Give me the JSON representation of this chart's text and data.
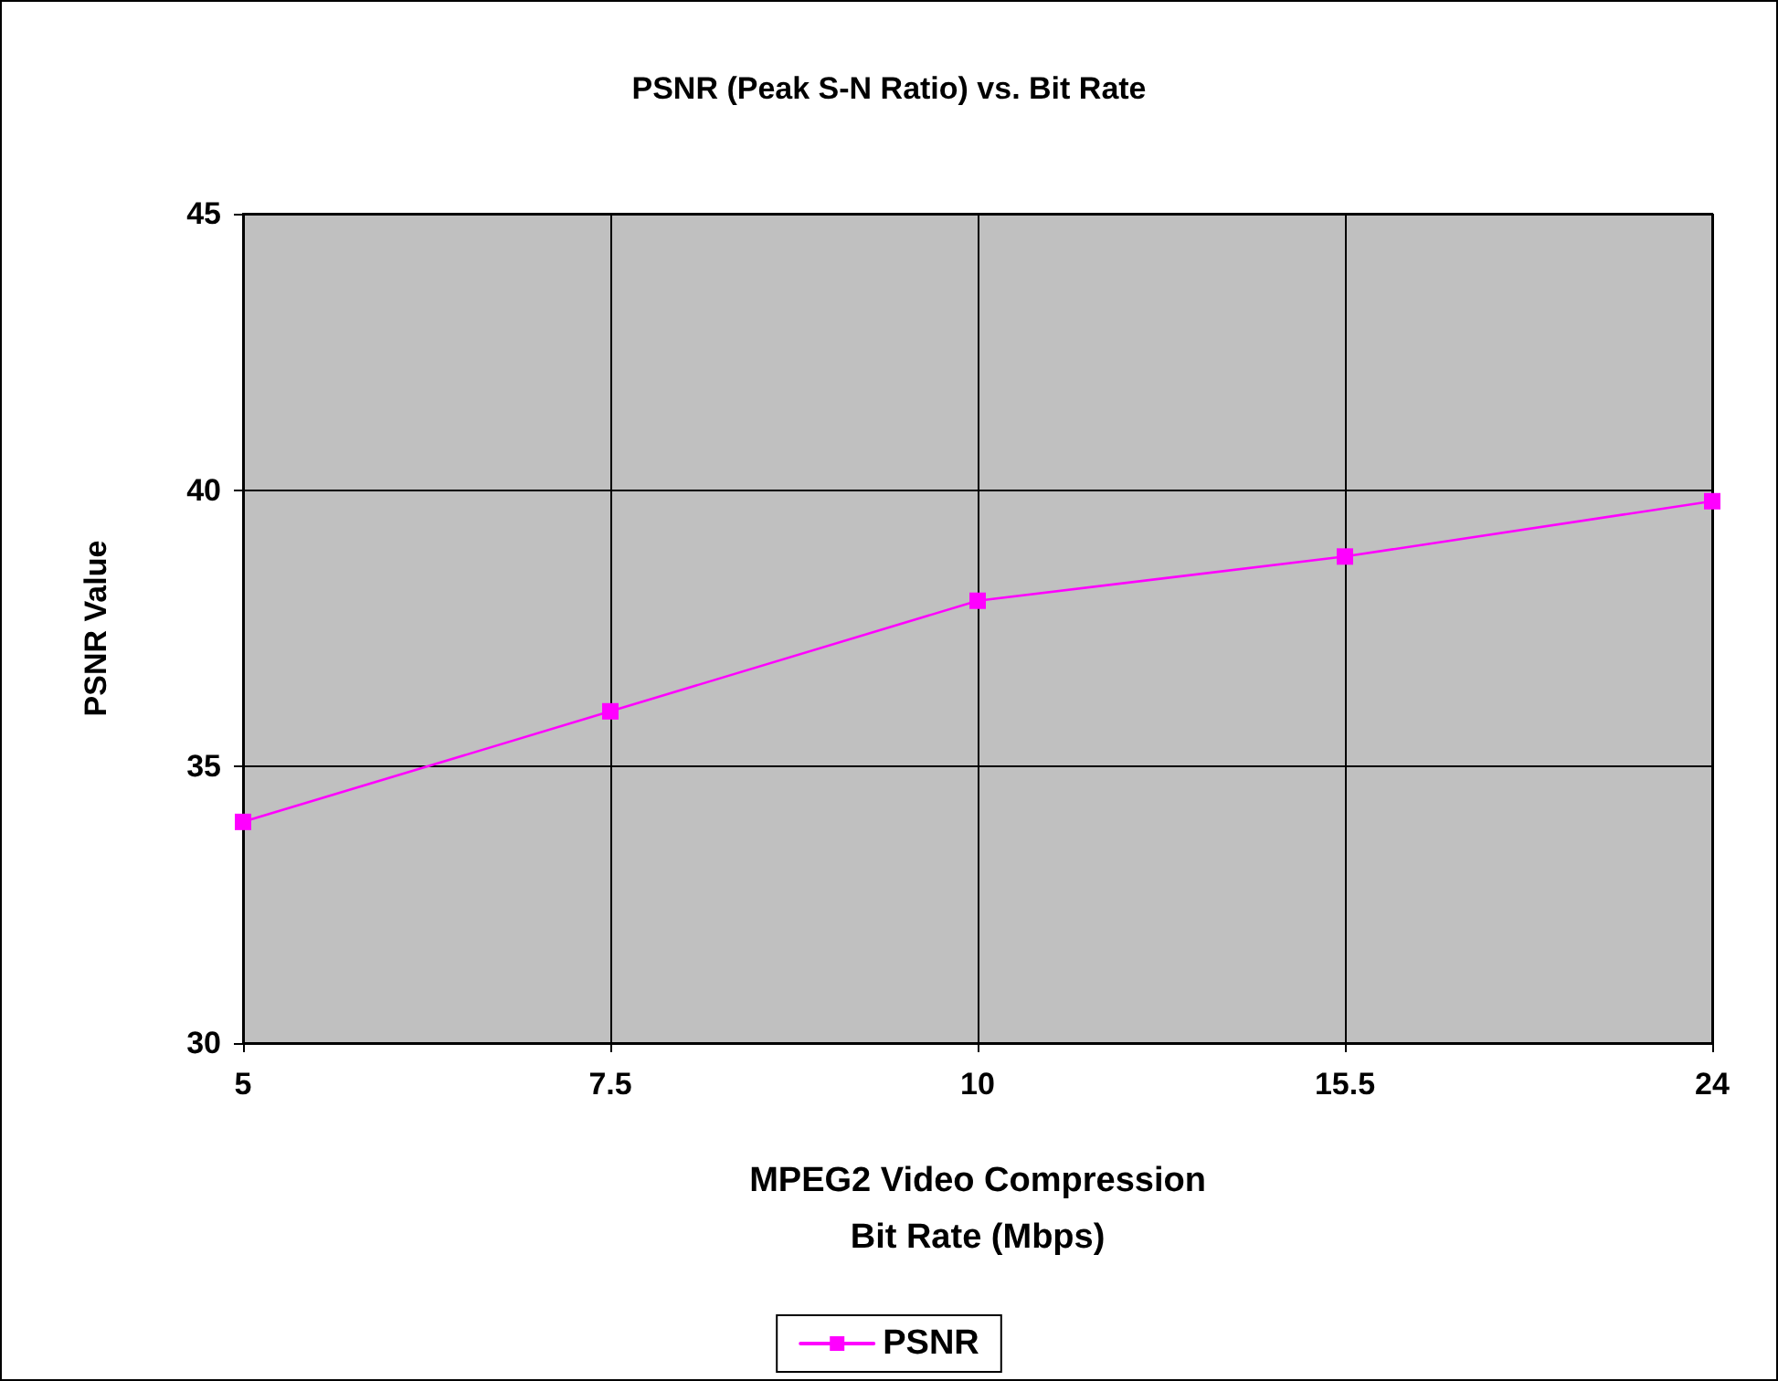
{
  "chart_data": {
    "type": "line",
    "title": "PSNR (Peak S-N Ratio) vs. Bit Rate",
    "xlabel": "MPEG2 Video Compression\nBit Rate (Mbps)",
    "ylabel": "PSNR Value",
    "categories": [
      "5",
      "7.5",
      "10",
      "15.5",
      "24"
    ],
    "series": [
      {
        "name": "PSNR",
        "color": "#ff00ff",
        "values": [
          34,
          36,
          38,
          38.8,
          39.8
        ]
      }
    ],
    "ylim": [
      30,
      45
    ],
    "yticks": [
      30,
      35,
      40,
      45
    ],
    "grid": true,
    "legend": "bottom",
    "marker": "square",
    "line_style": "solid"
  }
}
